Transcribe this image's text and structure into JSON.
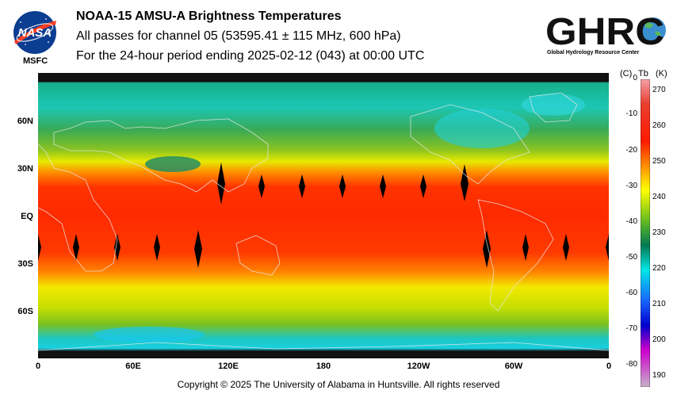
{
  "header": {
    "title": "NOAA-15 AMSU-A Brightness Temperatures",
    "subtitle": "All passes for channel 05 (53595.41 ± 115 MHz, 600 hPa)",
    "period": "For the 24-hour period ending 2025-02-12 (043) at 00:00 UTC"
  },
  "logos": {
    "nasa_text": "NASA",
    "nasa_label": "MSFC",
    "ghrc_text": "GHRC",
    "ghrc_subtitle": "Global Hydrology Resource Center"
  },
  "map": {
    "lat_labels": [
      "60N",
      "30N",
      "EQ",
      "30S",
      "60S"
    ],
    "lon_labels": [
      "0",
      "60E",
      "120E",
      "180",
      "120W",
      "60W",
      "0"
    ]
  },
  "colorbar": {
    "header_c": "(C)",
    "header_tb": "Tb",
    "header_k": "(K)",
    "celsius_ticks": [
      "0",
      "-10",
      "-20",
      "-30",
      "-40",
      "-50",
      "-60",
      "-70",
      "-80"
    ],
    "kelvin_ticks": [
      "270",
      "260",
      "250",
      "240",
      "230",
      "220",
      "210",
      "200",
      "190"
    ],
    "k_range": [
      187,
      273
    ]
  },
  "footer": {
    "copyright": "Copyright © 2025 The University of Alabama in Huntsville.  All rights reserved"
  }
}
